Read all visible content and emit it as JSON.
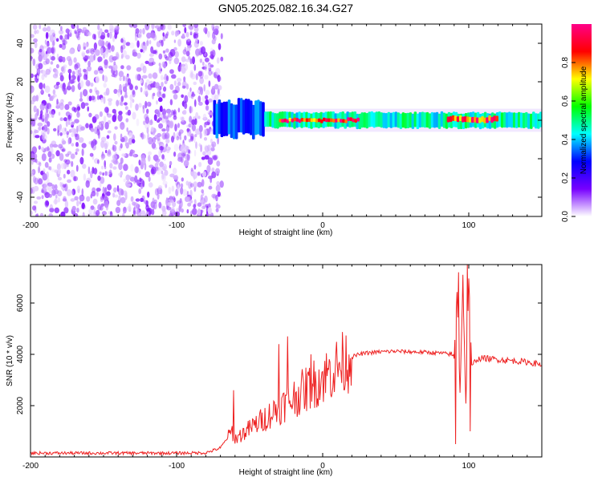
{
  "title": "GN05.2025.082.16.34.G27",
  "chart_data": [
    {
      "type": "heatmap",
      "xlabel": "Height of straight line (km)",
      "ylabel": "Frequency (Hz)",
      "xlim": [
        -200,
        150
      ],
      "ylim": [
        -50,
        50
      ],
      "xticks": [
        -200,
        -100,
        0,
        100
      ],
      "yticks": [
        -40,
        -20,
        0,
        20,
        40
      ],
      "grid": false,
      "colorbar": {
        "label": "Normalized spectral amplitude",
        "range": [
          0,
          1
        ],
        "ticks": [
          0.0,
          0.2,
          0.4,
          0.6,
          0.8
        ],
        "tick_labels": [
          "0.0",
          "0.2",
          "0.4",
          "0.6",
          "0.8"
        ],
        "colormap": [
          "#ffffff",
          "#7700ff",
          "#0000ff",
          "#00ffff",
          "#00ff00",
          "#ffff00",
          "#ff0000",
          "#ff0088"
        ]
      },
      "regions": [
        {
          "x": [
            -200,
            -75
          ],
          "freq": [
            -50,
            50
          ],
          "amplitude": 0.12,
          "description": "speckled noise"
        },
        {
          "x": [
            -75,
            -40
          ],
          "freq": [
            -8,
            10
          ],
          "amplitude": 0.35
        },
        {
          "x": [
            -40,
            150
          ],
          "freq": [
            -4,
            4
          ],
          "amplitude": 0.5
        },
        {
          "x": [
            -30,
            25
          ],
          "freq": [
            -1,
            1
          ],
          "amplitude": 0.95
        },
        {
          "x": [
            85,
            120
          ],
          "freq": [
            -1,
            2
          ],
          "amplitude": 0.9
        }
      ]
    },
    {
      "type": "line",
      "xlabel": "Height of straight line (km)",
      "ylabel": "SNR (10 * v/v)",
      "xlim": [
        -200,
        150
      ],
      "ylim": [
        0,
        7500
      ],
      "xticks": [
        -200,
        -100,
        0,
        100
      ],
      "yticks": [
        2000,
        4000,
        6000
      ],
      "grid": false,
      "series": [
        {
          "color": "#ee2222",
          "x": [
            -200,
            -150,
            -100,
            -80,
            -70,
            -62,
            -60,
            -55,
            -50,
            -45,
            -40,
            -35,
            -30,
            -25,
            -20,
            -15,
            -10,
            -5,
            0,
            5,
            10,
            15,
            20,
            25,
            30,
            40,
            50,
            60,
            70,
            80,
            88,
            90,
            92,
            94,
            96,
            98,
            100,
            102,
            105,
            110,
            120,
            130,
            140,
            150
          ],
          "y": [
            150,
            150,
            150,
            160,
            350,
            1000,
            700,
            900,
            1100,
            1300,
            1500,
            1700,
            1900,
            2100,
            2300,
            2500,
            2700,
            2900,
            3100,
            3300,
            3500,
            3700,
            3900,
            4000,
            4050,
            4100,
            4120,
            4100,
            4080,
            4050,
            4000,
            3900,
            6500,
            2500,
            6800,
            2000,
            7000,
            3500,
            3800,
            3850,
            3800,
            3750,
            3700,
            3600
          ],
          "spikes": [
            {
              "x": -61,
              "y": 2600
            },
            {
              "x": -30,
              "y": 4400
            },
            {
              "x": -24,
              "y": 4700
            },
            {
              "x": -8,
              "y": 4000
            },
            {
              "x": 91,
              "y": 500
            },
            {
              "x": 93,
              "y": 7200
            },
            {
              "x": 96,
              "y": 7100
            },
            {
              "x": 99,
              "y": 7500
            },
            {
              "x": 101,
              "y": 1000
            }
          ]
        }
      ]
    }
  ]
}
